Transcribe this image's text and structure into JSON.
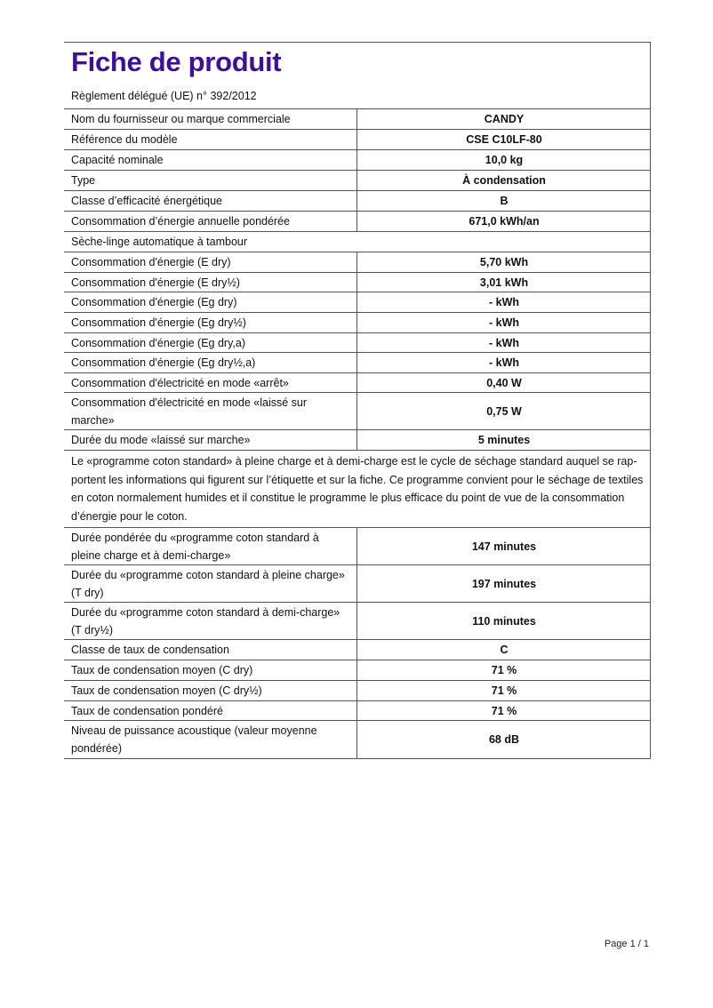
{
  "header": {
    "title": "Fiche de produit",
    "subtitle": "Règlement délégué (UE) n° 392/2012",
    "title_color": "#3f0f9a"
  },
  "rows": [
    {
      "label": "Nom du fournisseur ou marque commerciale",
      "value": "CANDY"
    },
    {
      "label": "Référence du modèle",
      "value": "CSE C10LF-80"
    },
    {
      "label": "Capacité nominale",
      "value": "10,0 kg"
    },
    {
      "label": "Type",
      "value": "À condensation"
    },
    {
      "label": "Classe d’efficacité énergétique",
      "value": "B"
    },
    {
      "label": "Consommation d’énergie annuelle pondérée",
      "value": "671,0 kWh/an"
    },
    {
      "label": "Sèche-linge automatique à tambour"
    },
    {
      "label": "Consommation d'énergie (E dry)",
      "value": "5,70 kWh"
    },
    {
      "label": "Consommation d'énergie (E dry½)",
      "value": "3,01 kWh"
    },
    {
      "label": "Consommation d'énergie (Eg dry)",
      "value": "- kWh"
    },
    {
      "label": "Consommation d'énergie (Eg dry½)",
      "value": "- kWh"
    },
    {
      "label": "Consommation d'énergie (Eg dry,a)",
      "value": "- kWh"
    },
    {
      "label": "Consommation d'énergie (Eg dry½,a)",
      "value": "- kWh"
    },
    {
      "label": "Consommation d'électricité en mode «arrêt»",
      "value": "0,40 W"
    },
    {
      "label": "Consommation d'électricité en mode «laissé sur marche»",
      "value": "0,75 W"
    },
    {
      "label": "Durée du mode «laissé sur marche»",
      "value": "5 minutes"
    },
    {
      "label": "Le «programme coton standard» à pleine charge et à demi-charge est le cycle de séchage standard auquel se rap­portent les informations qui figurent sur l’étiquette et sur la fiche. Ce programme convient pour le séchage de tex­tiles en coton normalement humides et il constitue le programme le plus efficace du point de vue de la consomma­tion d’énergie pour le coton."
    },
    {
      "label": "Durée pondérée du «programme coton standard à pleine charge et à demi-charge»",
      "value": "147 minutes"
    },
    {
      "label": "Durée du «programme coton standard à pleine charge» (T dry)",
      "value": "197 minutes"
    },
    {
      "label": "Durée du «programme coton standard à demi-charge» (T dry½)",
      "value": "110 minutes"
    },
    {
      "label": "Classe de taux de condensation",
      "value": "C"
    },
    {
      "label": "Taux de condensation moyen (C dry)",
      "value": "71 %"
    },
    {
      "label": "Taux de condensation moyen (C dry½)",
      "value": "71 %"
    },
    {
      "label": "Taux de condensation pondéré",
      "value": "71 %"
    },
    {
      "label": "Niveau de puissance acoustique (valeur moyenne pondé­rée)",
      "value": "68 dB"
    }
  ],
  "footer": {
    "page": "Page 1 / 1"
  }
}
